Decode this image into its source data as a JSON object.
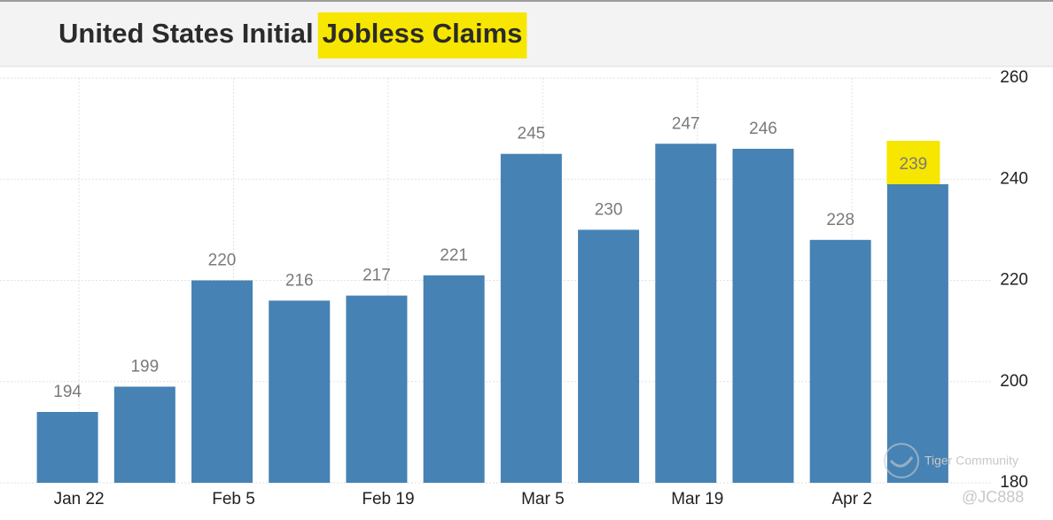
{
  "chart_data": {
    "type": "bar",
    "title": "United States Initial",
    "title_highlight": "Jobless Claims",
    "categories": [
      "Jan 22",
      null,
      "Feb 5",
      null,
      "Feb 19",
      null,
      "Mar 5",
      null,
      "Mar 19",
      null,
      "Apr 2",
      null
    ],
    "values": [
      194,
      199,
      220,
      216,
      217,
      221,
      245,
      230,
      247,
      246,
      228,
      239
    ],
    "color": "#4682b4",
    "highlight_color": "#f7e600",
    "ylim": [
      180,
      260
    ],
    "yticks": [
      180,
      200,
      220,
      240,
      260
    ],
    "grid": true,
    "watermark": "Tiger Community",
    "credit": "@JC888"
  }
}
